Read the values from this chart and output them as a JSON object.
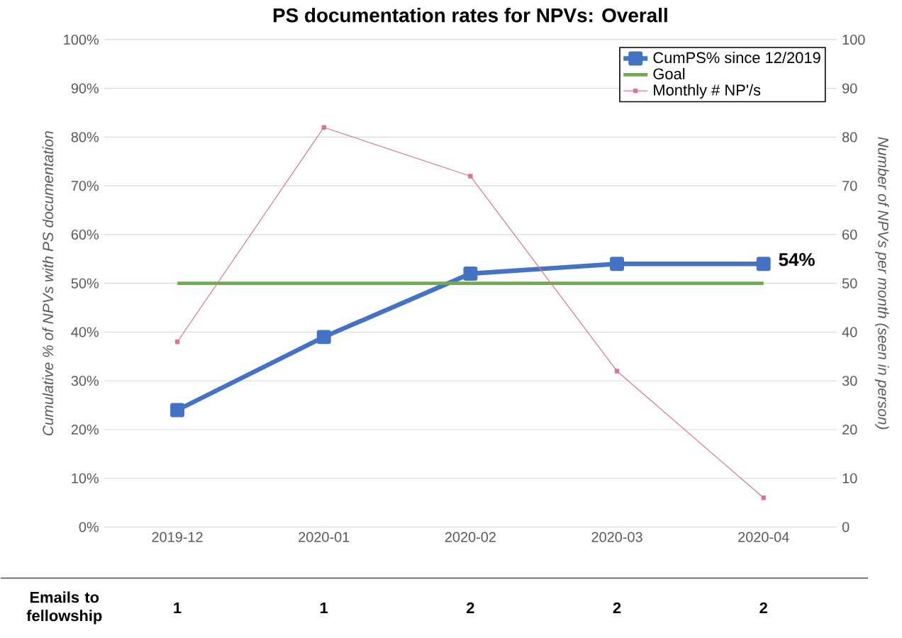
{
  "chart_data": {
    "type": "line",
    "title": "PS documentation rates for NPVs: Overall",
    "categories": [
      "2019-12",
      "2020-01",
      "2020-02",
      "2020-03",
      "2020-04"
    ],
    "series": [
      {
        "name": "CumPS% since 12/2019",
        "color": "#4472c4",
        "values": [
          24,
          39,
          52,
          54,
          54
        ],
        "marker": "square"
      },
      {
        "name": "Goal",
        "color": "#70ad47",
        "values": [
          50,
          50,
          50,
          50,
          50
        ],
        "marker": "none"
      },
      {
        "name": "Monthly # NP'/s",
        "color": "#d9778c",
        "values": [
          38,
          82,
          72,
          32,
          6
        ],
        "marker": "square",
        "axis": "y2"
      }
    ],
    "ylim": [
      0,
      100
    ],
    "yticks": [
      {
        "value": 0,
        "label": "0%"
      },
      {
        "value": 10,
        "label": "10%"
      },
      {
        "value": 20,
        "label": "20%"
      },
      {
        "value": 30,
        "label": "30%"
      },
      {
        "value": 40,
        "label": "40%"
      },
      {
        "value": 50,
        "label": "50%"
      },
      {
        "value": 60,
        "label": "60%"
      },
      {
        "value": 70,
        "label": "70%"
      },
      {
        "value": 80,
        "label": "80%"
      },
      {
        "value": 90,
        "label": "90%"
      },
      {
        "value": 100,
        "label": "100%"
      }
    ],
    "y2lim": [
      0,
      100
    ],
    "y2ticks": [
      0,
      10,
      20,
      30,
      40,
      50,
      60,
      70,
      80,
      90,
      100
    ],
    "ylabel": "Cumulative % of NPVs with PS documentation",
    "y2label": "Number of NPVs per month (seen in person)",
    "grid": "y",
    "legend": "top right",
    "annotations": [
      {
        "text": "54%",
        "x": "2020-04",
        "y": 54
      },
      "Emails to fellowship",
      "1",
      "1",
      "2",
      "2",
      "2"
    ]
  }
}
